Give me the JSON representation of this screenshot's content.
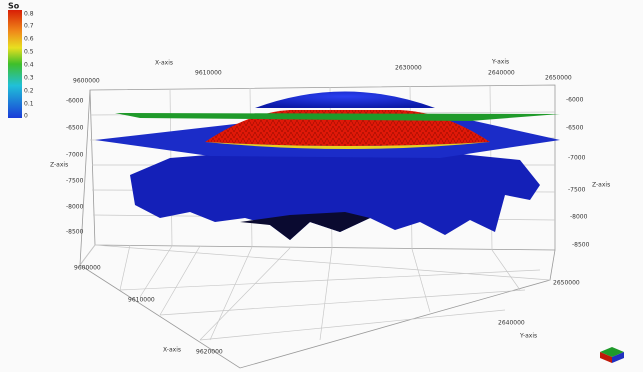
{
  "colorbar": {
    "title": "So",
    "ticks": [
      "0.8",
      "0.7",
      "0.6",
      "0.5",
      "0.4",
      "0.3",
      "0.2",
      "0.1",
      "0"
    ]
  },
  "x_axis_top": {
    "label": "X-axis",
    "ticks": [
      "9600000",
      "9610000"
    ]
  },
  "y_axis_top": {
    "label": "Y-axis",
    "ticks": [
      "2630000",
      "2640000",
      "2650000"
    ]
  },
  "z_axis_left": {
    "label": "Z-axis",
    "ticks": [
      "-6000",
      "-6500",
      "-7000",
      "-7500",
      "-8000",
      "-8500"
    ]
  },
  "z_axis_right": {
    "label": "Z-axis",
    "ticks": [
      "-6000",
      "-6500",
      "-7000",
      "-7500",
      "-8000",
      "-8500"
    ]
  },
  "x_axis_bottom": {
    "label": "X-axis",
    "ticks": [
      "9600000",
      "9610000",
      "9620000"
    ]
  },
  "y_axis_bottom": {
    "label": "Y-axis",
    "ticks": [
      "2650000",
      "2640000"
    ]
  }
}
